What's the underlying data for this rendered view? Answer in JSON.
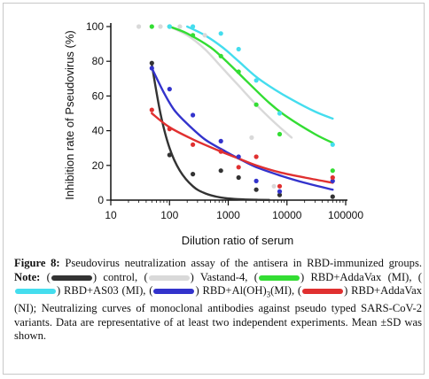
{
  "chart_data": {
    "type": "scatter",
    "ylabel": "Inhibition rate of Pseudovirus (%)",
    "xlabel": "Dilution ratio of serum",
    "xscale": "log",
    "xlim": [
      10,
      100000
    ],
    "ylim": [
      0,
      100
    ],
    "x_ticks": [
      "10",
      "100",
      "1000",
      "10000",
      "100000"
    ],
    "y_ticks": [
      "0",
      "20",
      "40",
      "60",
      "80",
      "100"
    ],
    "grid": false,
    "series": [
      {
        "name": "control",
        "color": "#333333",
        "points": [
          [
            50,
            79
          ],
          [
            100,
            26
          ],
          [
            250,
            15
          ],
          [
            750,
            17
          ],
          [
            1500,
            13
          ],
          [
            3000,
            6
          ],
          [
            7500,
            3
          ],
          [
            60000,
            2
          ]
        ],
        "fit_x": [
          50,
          70,
          100,
          150,
          250,
          400,
          750,
          1500,
          3000,
          5000
        ],
        "fit_y": [
          78,
          50,
          30,
          17,
          8,
          4,
          1.5,
          0.5,
          0.2,
          0.1
        ]
      },
      {
        "name": "Vastand-4",
        "color": "#d9d9d9",
        "points": [
          [
            30,
            100
          ],
          [
            70,
            100
          ],
          [
            150,
            100
          ],
          [
            400,
            95
          ],
          [
            2500,
            36
          ],
          [
            6000,
            8
          ]
        ],
        "fit_x": [
          100,
          200,
          400,
          800,
          1500,
          3000,
          6000,
          12000
        ],
        "fit_y": [
          100,
          95,
          87,
          76,
          66,
          55,
          45,
          36
        ]
      },
      {
        "name": "RBD+AddaVax (MI)",
        "color": "#33dd33",
        "points": [
          [
            50,
            100
          ],
          [
            100,
            100
          ],
          [
            250,
            95
          ],
          [
            750,
            83
          ],
          [
            1500,
            74
          ],
          [
            3000,
            55
          ],
          [
            7500,
            38
          ],
          [
            60000,
            17
          ]
        ],
        "fit_x": [
          100,
          200,
          500,
          1000,
          2000,
          5000,
          10000,
          30000,
          60000
        ],
        "fit_y": [
          100,
          96,
          88,
          79,
          69,
          56,
          48,
          38,
          33
        ]
      },
      {
        "name": "RBD+AS03 (MI)",
        "color": "#44ddee",
        "points": [
          [
            100,
            100
          ],
          [
            250,
            100
          ],
          [
            750,
            96
          ],
          [
            1500,
            87
          ],
          [
            3000,
            69
          ],
          [
            7500,
            50
          ],
          [
            60000,
            32
          ]
        ],
        "fit_x": [
          200,
          400,
          800,
          1500,
          3000,
          6000,
          12000,
          30000,
          60000
        ],
        "fit_y": [
          100,
          95,
          88,
          80,
          71,
          64,
          58,
          51,
          47
        ]
      },
      {
        "name": "RBD+Al(OH)3 (MI)",
        "color": "#3333cc",
        "points": [
          [
            50,
            76
          ],
          [
            100,
            64
          ],
          [
            250,
            49
          ],
          [
            750,
            34
          ],
          [
            1500,
            25
          ],
          [
            3000,
            11
          ],
          [
            7500,
            5
          ],
          [
            60000,
            11
          ]
        ],
        "fit_x": [
          50,
          80,
          120,
          200,
          400,
          800,
          1500,
          3000,
          8000,
          20000,
          60000
        ],
        "fit_y": [
          76,
          62,
          52,
          44,
          35,
          29,
          24,
          19,
          14,
          10,
          6
        ]
      },
      {
        "name": "RBD+AddaVax (NI)",
        "color": "#e03030",
        "points": [
          [
            50,
            52
          ],
          [
            100,
            41
          ],
          [
            250,
            32
          ],
          [
            750,
            28
          ],
          [
            1500,
            19
          ],
          [
            3000,
            25
          ],
          [
            7500,
            8
          ],
          [
            60000,
            13
          ]
        ],
        "fit_x": [
          50,
          100,
          250,
          750,
          1500,
          3000,
          7500,
          20000,
          60000
        ],
        "fit_y": [
          50,
          42,
          35,
          28,
          24,
          20,
          16,
          13,
          10
        ]
      }
    ]
  },
  "caption": {
    "figure_label": "Figure 8:",
    "intro": " Pseudovirus neutralization assay of the antisera in RBD-immunized groups. ",
    "note_label": "Note:",
    "note_open": " (",
    "control": ") control, (",
    "vastand": ") Vastand-4,",
    "addavax_mi_open": "(",
    "addavax_mi": ") RBD+AddaVax (MI), (",
    "as03_mi": ") RBD+AS03 (MI), (",
    "aloh_prefix": ") RBD+Al(OH)",
    "aloh_sub": "3",
    "aloh_suffix": "(MI), (",
    "addavax_ni": ") RBD+AddaVax (NI); Neutralizing curves of monoclonal antibodies against pseudo typed SARS-CoV-2 variants. Data are representative of at least two independent experiments. Mean ±SD was shown."
  }
}
